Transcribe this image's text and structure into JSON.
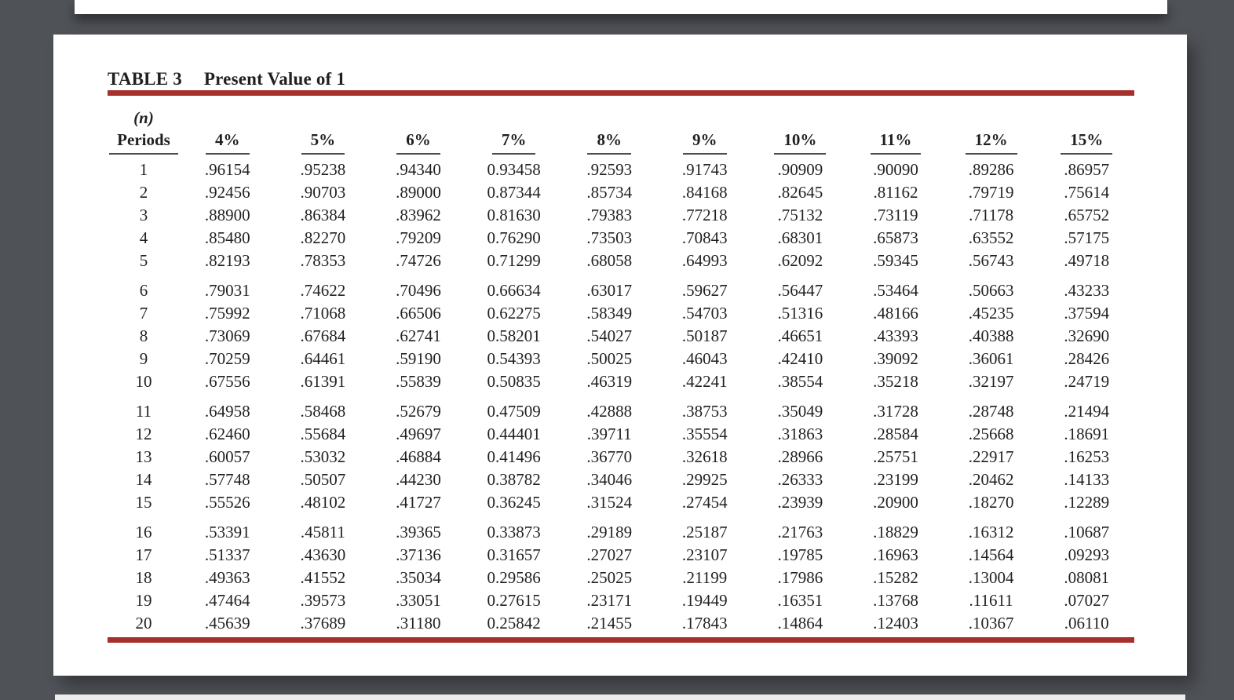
{
  "page": {
    "title_label": "TABLE 3",
    "title_text": "Present Value of 1"
  },
  "colors": {
    "accent_rule": "#a5302c",
    "canvas_background": "#4f5257",
    "page_background": "#ffffff",
    "text": "#231f20"
  },
  "table": {
    "corner_header_line1": "(n)",
    "corner_header_line2": "Periods",
    "columns": [
      "4%",
      "5%",
      "6%",
      "7%",
      "8%",
      "9%",
      "10%",
      "11%",
      "12%",
      "15%"
    ],
    "group_size": 5,
    "rows": [
      [
        "1",
        ".96154",
        ".95238",
        ".94340",
        "0.93458",
        ".92593",
        ".91743",
        ".90909",
        ".90090",
        ".89286",
        ".86957"
      ],
      [
        "2",
        ".92456",
        ".90703",
        ".89000",
        "0.87344",
        ".85734",
        ".84168",
        ".82645",
        ".81162",
        ".79719",
        ".75614"
      ],
      [
        "3",
        ".88900",
        ".86384",
        ".83962",
        "0.81630",
        ".79383",
        ".77218",
        ".75132",
        ".73119",
        ".71178",
        ".65752"
      ],
      [
        "4",
        ".85480",
        ".82270",
        ".79209",
        "0.76290",
        ".73503",
        ".70843",
        ".68301",
        ".65873",
        ".63552",
        ".57175"
      ],
      [
        "5",
        ".82193",
        ".78353",
        ".74726",
        "0.71299",
        ".68058",
        ".64993",
        ".62092",
        ".59345",
        ".56743",
        ".49718"
      ],
      [
        "6",
        ".79031",
        ".74622",
        ".70496",
        "0.66634",
        ".63017",
        ".59627",
        ".56447",
        ".53464",
        ".50663",
        ".43233"
      ],
      [
        "7",
        ".75992",
        ".71068",
        ".66506",
        "0.62275",
        ".58349",
        ".54703",
        ".51316",
        ".48166",
        ".45235",
        ".37594"
      ],
      [
        "8",
        ".73069",
        ".67684",
        ".62741",
        "0.58201",
        ".54027",
        ".50187",
        ".46651",
        ".43393",
        ".40388",
        ".32690"
      ],
      [
        "9",
        ".70259",
        ".64461",
        ".59190",
        "0.54393",
        ".50025",
        ".46043",
        ".42410",
        ".39092",
        ".36061",
        ".28426"
      ],
      [
        "10",
        ".67556",
        ".61391",
        ".55839",
        "0.50835",
        ".46319",
        ".42241",
        ".38554",
        ".35218",
        ".32197",
        ".24719"
      ],
      [
        "11",
        ".64958",
        ".58468",
        ".52679",
        "0.47509",
        ".42888",
        ".38753",
        ".35049",
        ".31728",
        ".28748",
        ".21494"
      ],
      [
        "12",
        ".62460",
        ".55684",
        ".49697",
        "0.44401",
        ".39711",
        ".35554",
        ".31863",
        ".28584",
        ".25668",
        ".18691"
      ],
      [
        "13",
        ".60057",
        ".53032",
        ".46884",
        "0.41496",
        ".36770",
        ".32618",
        ".28966",
        ".25751",
        ".22917",
        ".16253"
      ],
      [
        "14",
        ".57748",
        ".50507",
        ".44230",
        "0.38782",
        ".34046",
        ".29925",
        ".26333",
        ".23199",
        ".20462",
        ".14133"
      ],
      [
        "15",
        ".55526",
        ".48102",
        ".41727",
        "0.36245",
        ".31524",
        ".27454",
        ".23939",
        ".20900",
        ".18270",
        ".12289"
      ],
      [
        "16",
        ".53391",
        ".45811",
        ".39365",
        "0.33873",
        ".29189",
        ".25187",
        ".21763",
        ".18829",
        ".16312",
        ".10687"
      ],
      [
        "17",
        ".51337",
        ".43630",
        ".37136",
        "0.31657",
        ".27027",
        ".23107",
        ".19785",
        ".16963",
        ".14564",
        ".09293"
      ],
      [
        "18",
        ".49363",
        ".41552",
        ".35034",
        "0.29586",
        ".25025",
        ".21199",
        ".17986",
        ".15282",
        ".13004",
        ".08081"
      ],
      [
        "19",
        ".47464",
        ".39573",
        ".33051",
        "0.27615",
        ".23171",
        ".19449",
        ".16351",
        ".13768",
        ".11611",
        ".07027"
      ],
      [
        "20",
        ".45639",
        ".37689",
        ".31180",
        "0.25842",
        ".21455",
        ".17843",
        ".14864",
        ".12403",
        ".10367",
        ".06110"
      ]
    ]
  }
}
